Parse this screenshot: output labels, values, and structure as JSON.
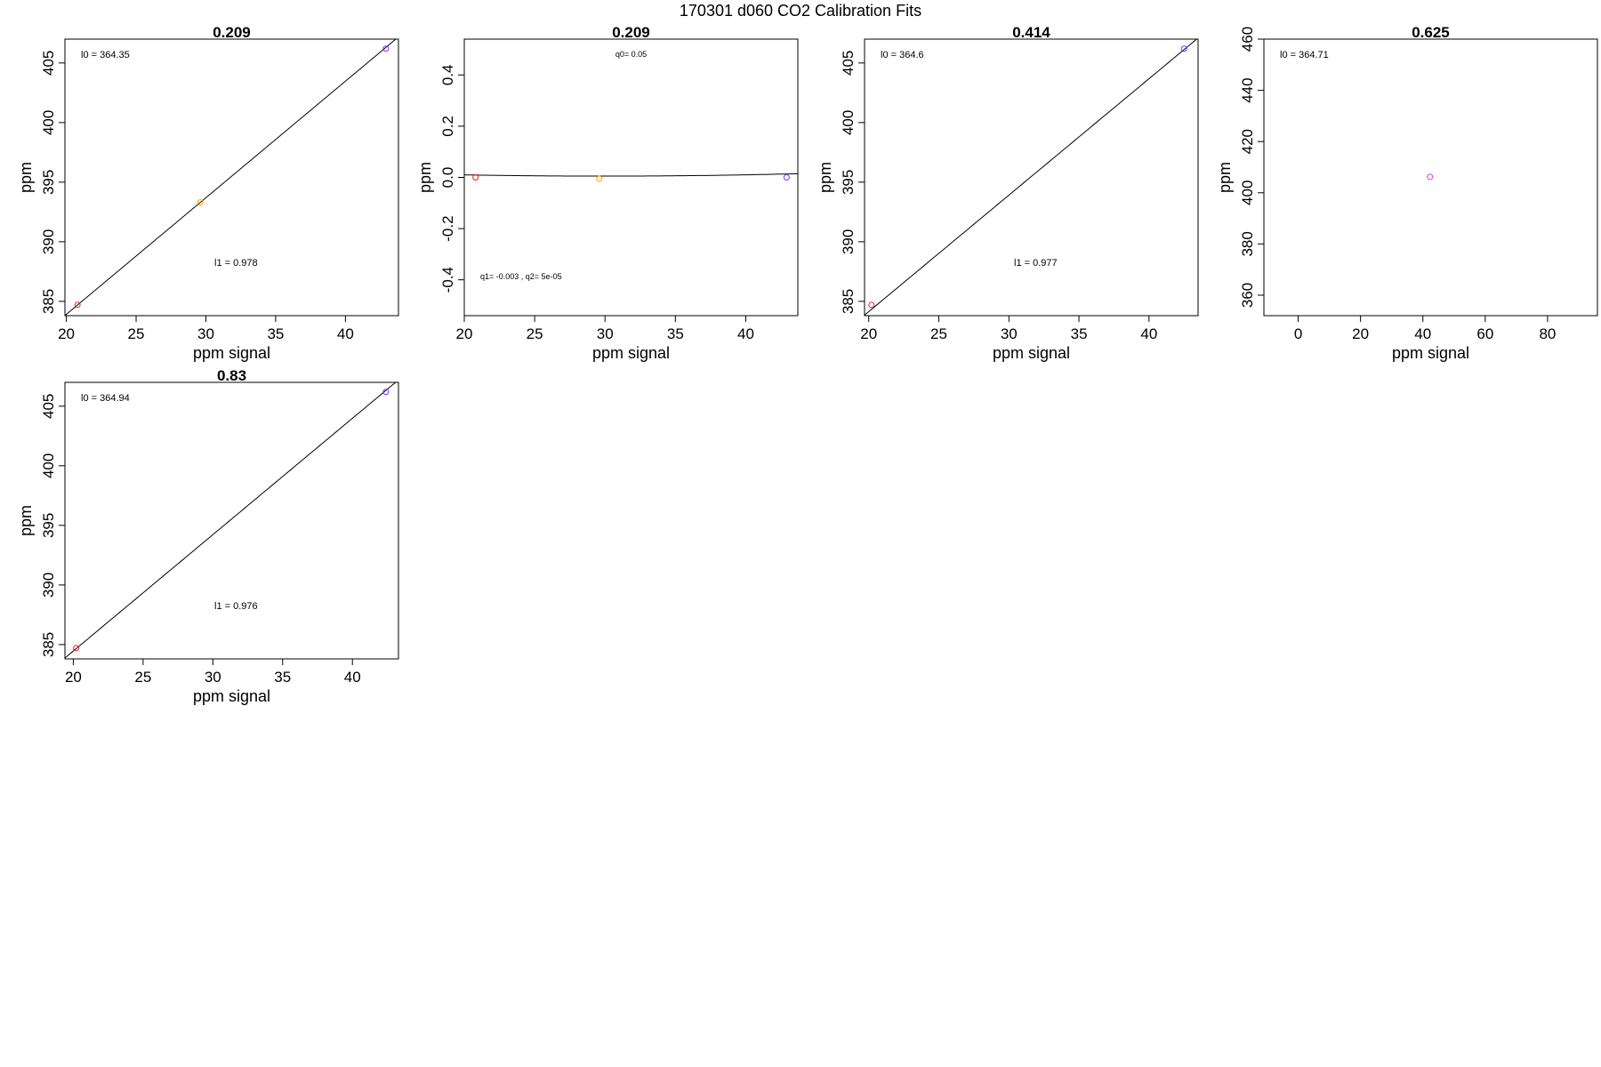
{
  "figure_title": "170301   d060   CO2 Calibration Fits",
  "colors": {
    "red": "#e41a1c",
    "orange": "#ff9a00",
    "purple": "#7b2fff",
    "magenta": "#dd33dd",
    "line": "#000000"
  },
  "chart_data": [
    {
      "type": "scatter",
      "title": "0.209",
      "xlabel": "ppm signal",
      "ylabel": "ppm",
      "xlim": [
        19.9,
        43.8
      ],
      "ylim": [
        383.8,
        407
      ],
      "xticks": [
        20,
        25,
        30,
        35,
        40
      ],
      "yticks": [
        385,
        390,
        395,
        400,
        405
      ],
      "fit": {
        "kind": "linear",
        "intercept": 364.35,
        "slope": 0.978
      },
      "points": [
        {
          "x": 20.8,
          "y": 384.7,
          "color": "#e41a1c"
        },
        {
          "x": 29.6,
          "y": 393.3,
          "color": "#ff9a00"
        },
        {
          "x": 42.9,
          "y": 406.2,
          "color": "#7b2fff"
        }
      ],
      "annotations": [
        {
          "text": "l0 =  364.35",
          "at": "top-left"
        },
        {
          "text": "l1 =  0.978",
          "at": "lower-middle"
        }
      ]
    },
    {
      "type": "scatter",
      "title": "0.209",
      "xlabel": "ppm signal",
      "ylabel": "ppm",
      "xlim": [
        20,
        43.7
      ],
      "ylim": [
        -0.54,
        0.54
      ],
      "xticks": [
        20,
        25,
        30,
        35,
        40
      ],
      "yticks": [
        -0.4,
        -0.2,
        0.0,
        0.2,
        0.4
      ],
      "ytick_labels": [
        "-0.4",
        "-0.2",
        "0.0",
        "0.2",
        "0.4"
      ],
      "fit": {
        "kind": "quadratic",
        "q0": 0.05,
        "q1": -0.003,
        "q2": 5e-05
      },
      "points": [
        {
          "x": 20.8,
          "y": 0.0,
          "color": "#e41a1c"
        },
        {
          "x": 29.6,
          "y": -0.005,
          "color": "#ff9a00"
        },
        {
          "x": 42.9,
          "y": 0.0,
          "color": "#7b2fff"
        }
      ],
      "annotations": [
        {
          "text": "q0= 0.05",
          "at": "top-middle"
        },
        {
          "text": "q1= -0.003 , q2= 5e-05",
          "at": "lower-left"
        }
      ]
    },
    {
      "type": "scatter",
      "title": "0.414",
      "xlabel": "ppm signal",
      "ylabel": "ppm",
      "xlim": [
        19.7,
        43.5
      ],
      "ylim": [
        383.8,
        407
      ],
      "xticks": [
        20,
        25,
        30,
        35,
        40
      ],
      "yticks": [
        385,
        390,
        395,
        400,
        405
      ],
      "fit": {
        "kind": "linear",
        "intercept": 364.6,
        "slope": 0.977
      },
      "points": [
        {
          "x": 20.2,
          "y": 384.7,
          "color": "#e41a1c"
        },
        {
          "x": 42.5,
          "y": 406.2,
          "color": "#7b2fff"
        }
      ],
      "annotations": [
        {
          "text": "l0 =  364.6",
          "at": "top-left"
        },
        {
          "text": "l1 =  0.977",
          "at": "lower-middle"
        }
      ]
    },
    {
      "type": "scatter",
      "title": "0.625",
      "xlabel": "ppm signal",
      "ylabel": "ppm",
      "xlim": [
        -11,
        96
      ],
      "ylim": [
        352,
        460
      ],
      "xticks": [
        0,
        20,
        40,
        60,
        80
      ],
      "yticks": [
        360,
        380,
        400,
        420,
        440,
        460
      ],
      "fit": null,
      "points": [
        {
          "x": 42.3,
          "y": 406.2,
          "color": "#dd33dd"
        }
      ],
      "annotations": [
        {
          "text": "l0 =  364.71",
          "at": "top-left"
        }
      ]
    },
    {
      "type": "scatter",
      "title": "0.83",
      "xlabel": "ppm signal",
      "ylabel": "ppm",
      "xlim": [
        19.4,
        43.3
      ],
      "ylim": [
        383.8,
        407
      ],
      "xticks": [
        20,
        25,
        30,
        35,
        40
      ],
      "yticks": [
        385,
        390,
        395,
        400,
        405
      ],
      "fit": {
        "kind": "linear",
        "intercept": 364.94,
        "slope": 0.976
      },
      "points": [
        {
          "x": 20.2,
          "y": 384.7,
          "color": "#e41a1c"
        },
        {
          "x": 42.4,
          "y": 406.2,
          "color": "#7b2fff"
        }
      ],
      "annotations": [
        {
          "text": "l0 =  364.94",
          "at": "top-left"
        },
        {
          "text": "l1 =  0.976",
          "at": "lower-middle"
        }
      ]
    }
  ]
}
